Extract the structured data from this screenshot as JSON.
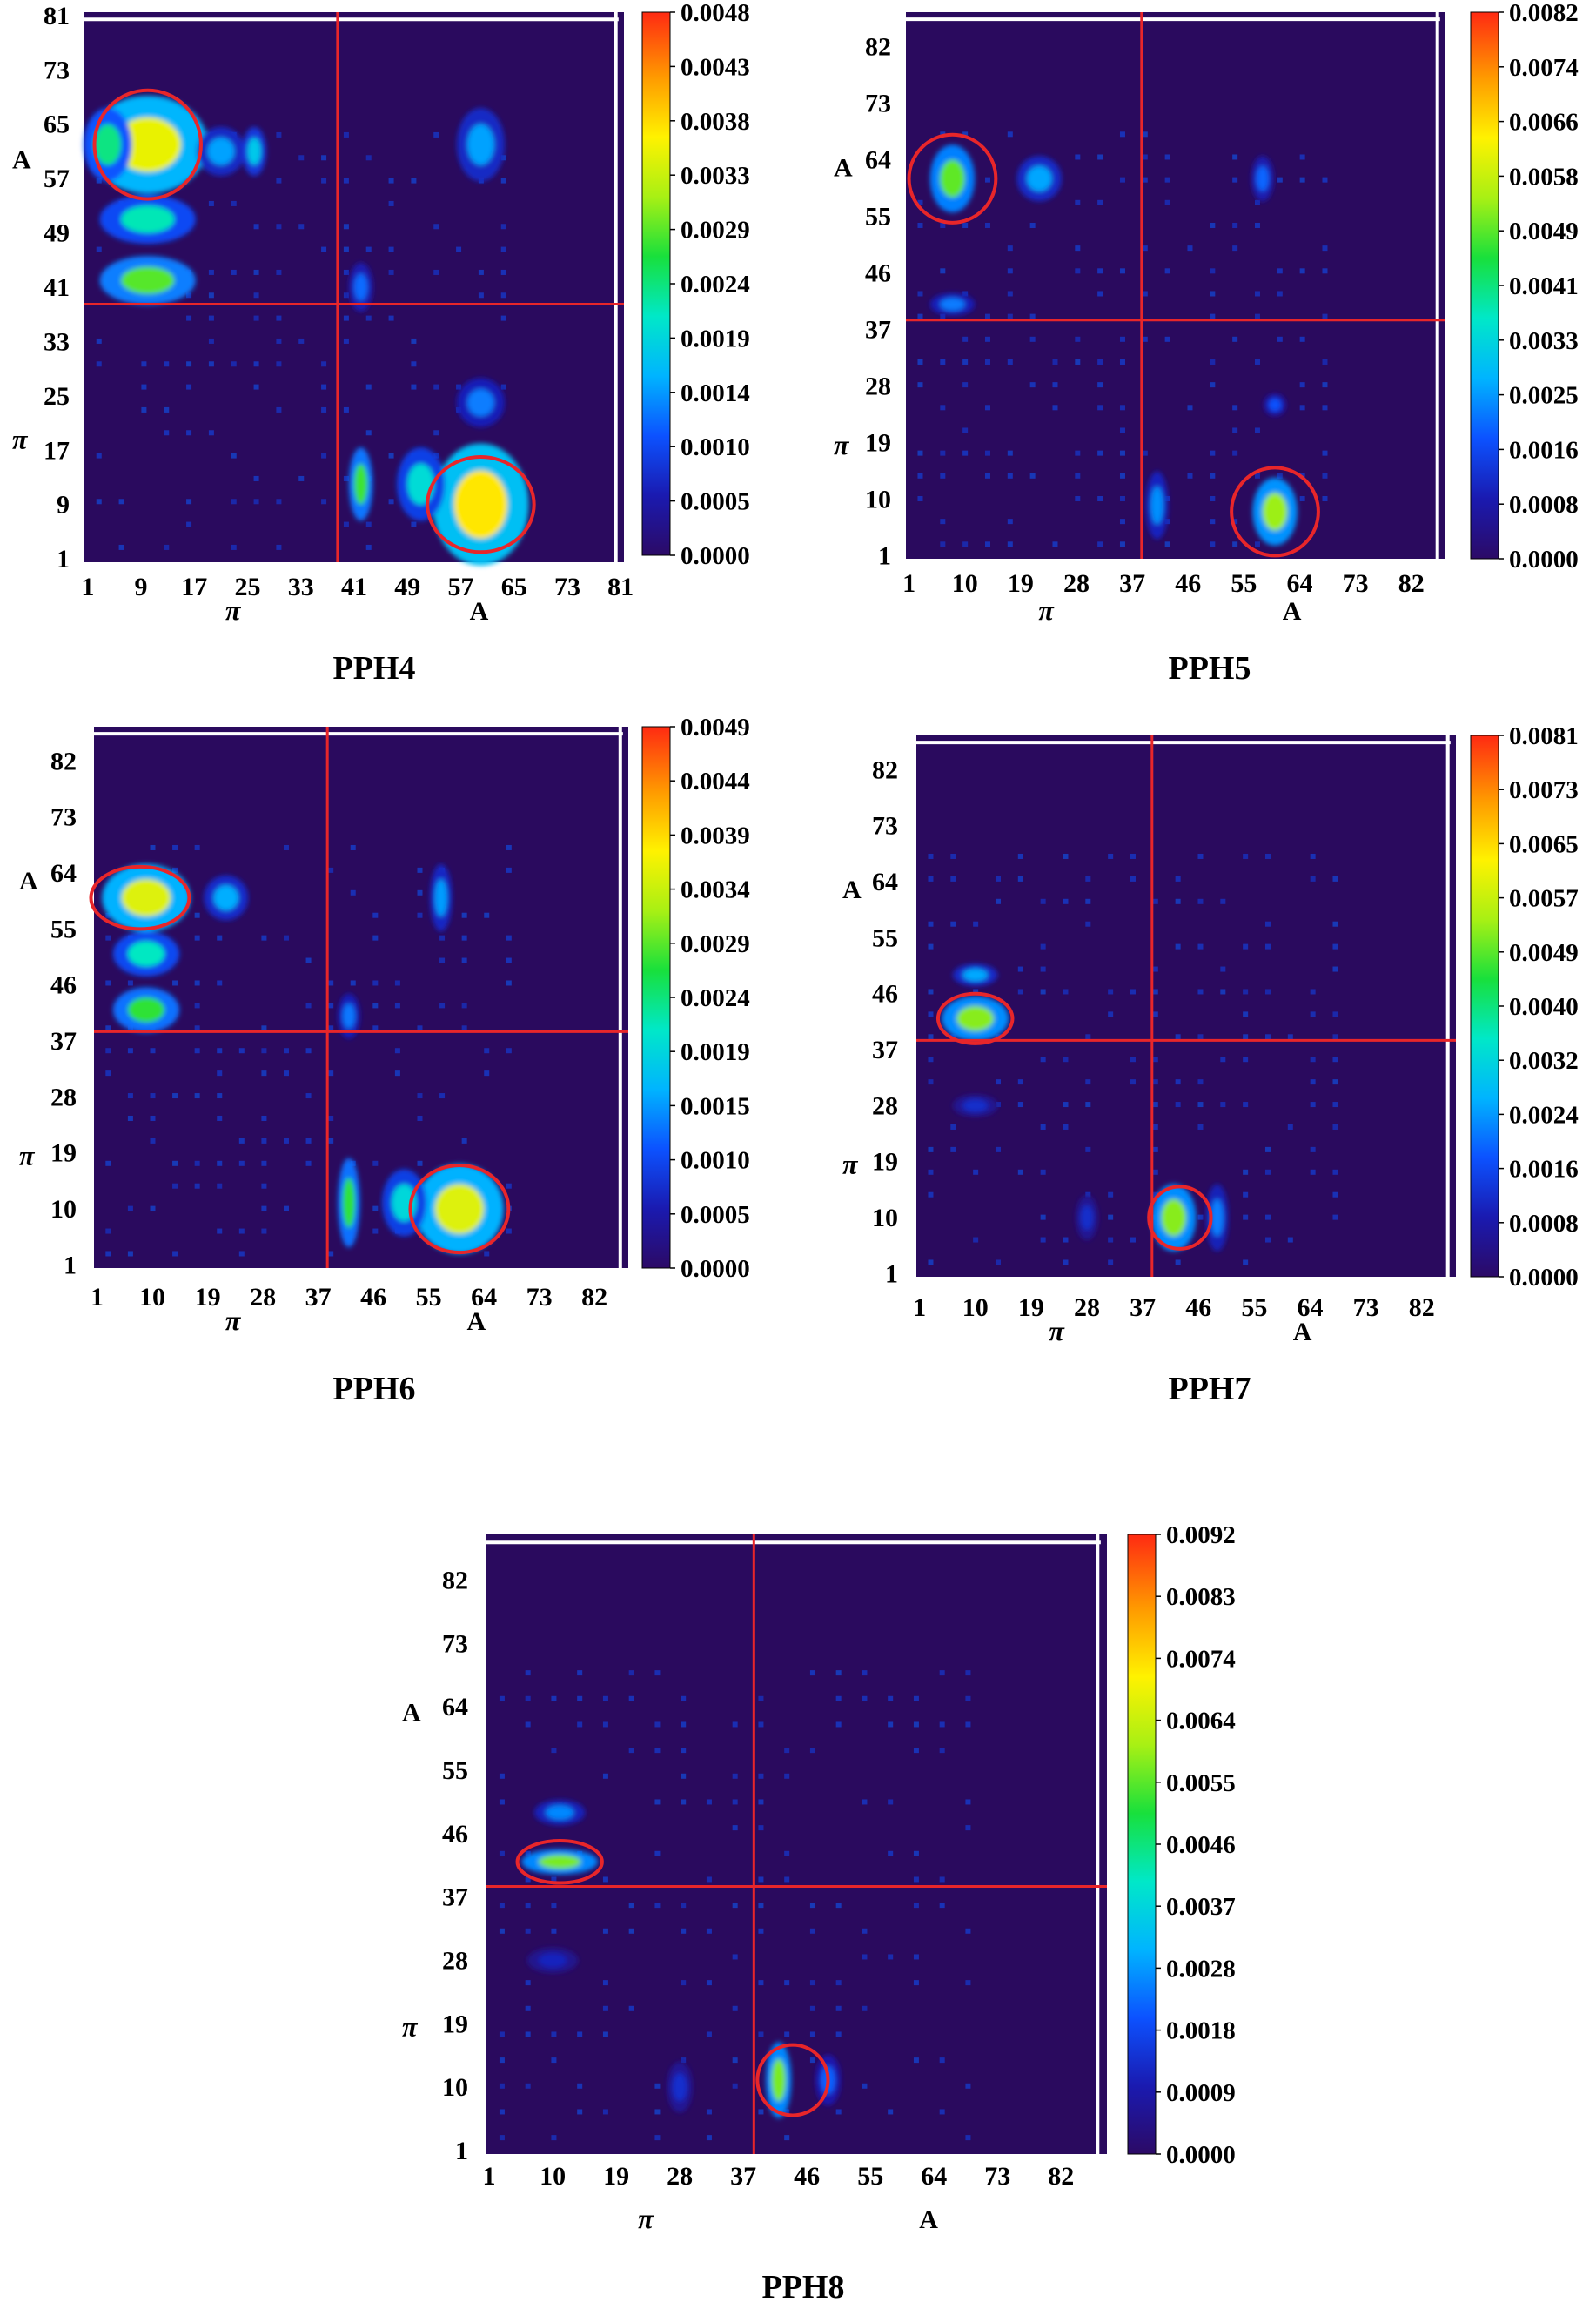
{
  "figure": {
    "panels": [
      "PPH4",
      "PPH5",
      "PPH6",
      "PPH7",
      "PPH8"
    ]
  },
  "colors": {
    "background_matrix": "#2a0a5e",
    "divider": "#e8262a",
    "circle": "#e8262a",
    "border_line": "#ffffff",
    "colormap": [
      "#2c0a66",
      "#1a1ab0",
      "#0c52ff",
      "#00b4ff",
      "#00e8c8",
      "#18e03c",
      "#a8f014",
      "#fff200",
      "#ff9a00",
      "#ff2a12"
    ]
  },
  "chart_data": [
    {
      "type": "heatmap",
      "title": "PPH4",
      "n": 81,
      "divider": 38.5,
      "x_ticks": [
        "1",
        "9",
        "17",
        "25",
        "33",
        "41",
        "49",
        "57",
        "65",
        "73",
        "81"
      ],
      "y_ticks": [
        "1",
        "9",
        "17",
        "25",
        "33",
        "41",
        "49",
        "57",
        "65",
        "73",
        "81"
      ],
      "x_group_labels": [
        "π",
        "A"
      ],
      "y_group_labels": [
        "π",
        "A"
      ],
      "colorbar_ticks": [
        "0.0048",
        "0.0043",
        "0.0038",
        "0.0033",
        "0.0029",
        "0.0024",
        "0.0019",
        "0.0014",
        "0.0010",
        "0.0005",
        "0.0000"
      ],
      "vmin": 0.0,
      "vmax": 0.0048,
      "hotspots": [
        {
          "x": 10,
          "y": 62,
          "value": 0.0036,
          "rx": 5,
          "ry": 4
        },
        {
          "x": 60,
          "y": 9,
          "value": 0.0038,
          "rx": 4,
          "ry": 5
        },
        {
          "x": 10,
          "y": 42,
          "value": 0.0029,
          "rx": 4,
          "ry": 2
        },
        {
          "x": 10,
          "y": 51,
          "value": 0.0022,
          "rx": 4,
          "ry": 2
        },
        {
          "x": 4,
          "y": 62,
          "value": 0.0024,
          "rx": 2,
          "ry": 3
        },
        {
          "x": 21,
          "y": 61,
          "value": 0.0015,
          "rx": 2,
          "ry": 2
        },
        {
          "x": 26,
          "y": 61,
          "value": 0.0018,
          "rx": 1,
          "ry": 2
        },
        {
          "x": 42,
          "y": 12,
          "value": 0.0028,
          "rx": 1,
          "ry": 3
        },
        {
          "x": 51,
          "y": 12,
          "value": 0.002,
          "rx": 2,
          "ry": 3
        },
        {
          "x": 60,
          "y": 24,
          "value": 0.0013,
          "rx": 2,
          "ry": 2
        },
        {
          "x": 60,
          "y": 62,
          "value": 0.0015,
          "rx": 2,
          "ry": 3
        },
        {
          "x": 42,
          "y": 41,
          "value": 0.0012,
          "rx": 1,
          "ry": 2
        }
      ],
      "circles": [
        {
          "x": 10,
          "y": 62,
          "rx": 8,
          "ry": 8
        },
        {
          "x": 60,
          "y": 9,
          "rx": 8,
          "ry": 7
        }
      ]
    },
    {
      "type": "heatmap",
      "title": "PPH5",
      "n": 87,
      "divider": 38.5,
      "x_ticks": [
        "1",
        "10",
        "19",
        "28",
        "37",
        "46",
        "55",
        "64",
        "73",
        "82"
      ],
      "y_ticks": [
        "1",
        "10",
        "19",
        "28",
        "37",
        "46",
        "55",
        "64",
        "73",
        "82"
      ],
      "x_group_labels": [
        "π",
        "A"
      ],
      "y_group_labels": [
        "π",
        "A"
      ],
      "colorbar_ticks": [
        "0.0082",
        "0.0074",
        "0.0066",
        "0.0058",
        "0.0049",
        "0.0041",
        "0.0033",
        "0.0025",
        "0.0016",
        "0.0008",
        "0.0000"
      ],
      "vmin": 0.0,
      "vmax": 0.0082,
      "hotspots": [
        {
          "x": 8,
          "y": 61,
          "value": 0.005,
          "rx": 2,
          "ry": 3
        },
        {
          "x": 60,
          "y": 8,
          "value": 0.0054,
          "rx": 2,
          "ry": 3
        },
        {
          "x": 22,
          "y": 61,
          "value": 0.0026,
          "rx": 2,
          "ry": 2
        },
        {
          "x": 8,
          "y": 41,
          "value": 0.0022,
          "rx": 2,
          "ry": 1
        },
        {
          "x": 41,
          "y": 9,
          "value": 0.0024,
          "rx": 1,
          "ry": 3
        },
        {
          "x": 60,
          "y": 25,
          "value": 0.0018,
          "rx": 1,
          "ry": 1
        },
        {
          "x": 58,
          "y": 61,
          "value": 0.002,
          "rx": 1,
          "ry": 2
        }
      ],
      "circles": [
        {
          "x": 8,
          "y": 61,
          "rx": 7,
          "ry": 7
        },
        {
          "x": 60,
          "y": 8,
          "rx": 7,
          "ry": 7
        }
      ]
    },
    {
      "type": "heatmap",
      "title": "PPH6",
      "n": 87,
      "divider": 38.5,
      "x_ticks": [
        "1",
        "10",
        "19",
        "28",
        "37",
        "46",
        "55",
        "64",
        "73",
        "82"
      ],
      "y_ticks": [
        "1",
        "10",
        "19",
        "28",
        "37",
        "46",
        "55",
        "64",
        "73",
        "82"
      ],
      "x_group_labels": [
        "π",
        "A"
      ],
      "y_group_labels": [
        "π",
        "A"
      ],
      "colorbar_ticks": [
        "0.0049",
        "0.0044",
        "0.0039",
        "0.0034",
        "0.0029",
        "0.0024",
        "0.0019",
        "0.0015",
        "0.0010",
        "0.0005",
        "0.0000"
      ],
      "vmin": 0.0,
      "vmax": 0.0049,
      "hotspots": [
        {
          "x": 9,
          "y": 60,
          "value": 0.0036,
          "rx": 4,
          "ry": 3
        },
        {
          "x": 60,
          "y": 10,
          "value": 0.0036,
          "rx": 4,
          "ry": 4
        },
        {
          "x": 9,
          "y": 42,
          "value": 0.0028,
          "rx": 3,
          "ry": 2
        },
        {
          "x": 9,
          "y": 51,
          "value": 0.0022,
          "rx": 3,
          "ry": 2
        },
        {
          "x": 42,
          "y": 11,
          "value": 0.0028,
          "rx": 1,
          "ry": 4
        },
        {
          "x": 51,
          "y": 11,
          "value": 0.002,
          "rx": 2,
          "ry": 3
        },
        {
          "x": 22,
          "y": 60,
          "value": 0.0016,
          "rx": 2,
          "ry": 2
        },
        {
          "x": 57,
          "y": 60,
          "value": 0.0015,
          "rx": 1,
          "ry": 3
        },
        {
          "x": 42,
          "y": 41,
          "value": 0.0013,
          "rx": 1,
          "ry": 2
        }
      ],
      "circles": [
        {
          "x": 8,
          "y": 60,
          "rx": 8,
          "ry": 5
        },
        {
          "x": 60,
          "y": 10,
          "rx": 8,
          "ry": 7
        }
      ]
    },
    {
      "type": "heatmap",
      "title": "PPH7",
      "n": 87,
      "divider": 38.5,
      "x_ticks": [
        "1",
        "10",
        "19",
        "28",
        "37",
        "46",
        "55",
        "64",
        "73",
        "82"
      ],
      "y_ticks": [
        "1",
        "10",
        "19",
        "28",
        "37",
        "46",
        "55",
        "64",
        "73",
        "82"
      ],
      "x_group_labels": [
        "π",
        "A"
      ],
      "y_group_labels": [
        "π",
        "A"
      ],
      "colorbar_ticks": [
        "0.0081",
        "0.0073",
        "0.0065",
        "0.0057",
        "0.0049",
        "0.0040",
        "0.0032",
        "0.0024",
        "0.0016",
        "0.0008",
        "0.0000"
      ],
      "vmin": 0.0,
      "vmax": 0.0081,
      "hotspots": [
        {
          "x": 10,
          "y": 42,
          "value": 0.0052,
          "rx": 3,
          "ry": 2
        },
        {
          "x": 42,
          "y": 10,
          "value": 0.0052,
          "rx": 2,
          "ry": 3
        },
        {
          "x": 10,
          "y": 49,
          "value": 0.0026,
          "rx": 2,
          "ry": 1
        },
        {
          "x": 49,
          "y": 10,
          "value": 0.0022,
          "rx": 1,
          "ry": 3
        },
        {
          "x": 10,
          "y": 28,
          "value": 0.0012,
          "rx": 2,
          "ry": 1
        },
        {
          "x": 28,
          "y": 10,
          "value": 0.0012,
          "rx": 1,
          "ry": 2
        }
      ],
      "circles": [
        {
          "x": 10,
          "y": 42,
          "rx": 6,
          "ry": 4
        },
        {
          "x": 43,
          "y": 10,
          "rx": 5,
          "ry": 5
        }
      ]
    },
    {
      "type": "heatmap",
      "title": "PPH8",
      "n": 88,
      "divider": 38.5,
      "x_ticks": [
        "1",
        "10",
        "19",
        "28",
        "37",
        "46",
        "55",
        "64",
        "73",
        "82"
      ],
      "y_ticks": [
        "1",
        "10",
        "19",
        "28",
        "37",
        "46",
        "55",
        "64",
        "73",
        "82"
      ],
      "x_group_labels": [
        "π",
        "A"
      ],
      "y_group_labels": [
        "π",
        "A"
      ],
      "colorbar_ticks": [
        "0.0092",
        "0.0083",
        "0.0074",
        "0.0064",
        "0.0055",
        "0.0046",
        "0.0037",
        "0.0028",
        "0.0018",
        "0.0009",
        "0.0000"
      ],
      "vmin": 0.0,
      "vmax": 0.0092,
      "hotspots": [
        {
          "x": 11,
          "y": 42,
          "value": 0.0058,
          "rx": 3,
          "ry": 1
        },
        {
          "x": 42,
          "y": 11,
          "value": 0.0058,
          "rx": 1,
          "ry": 3
        },
        {
          "x": 11,
          "y": 49,
          "value": 0.0026,
          "rx": 2,
          "ry": 1
        },
        {
          "x": 49,
          "y": 11,
          "value": 0.0022,
          "rx": 1,
          "ry": 2
        },
        {
          "x": 28,
          "y": 10,
          "value": 0.0014,
          "rx": 1,
          "ry": 2
        },
        {
          "x": 10,
          "y": 28,
          "value": 0.0012,
          "rx": 2,
          "ry": 1
        }
      ],
      "circles": [
        {
          "x": 11,
          "y": 42,
          "rx": 6,
          "ry": 3
        },
        {
          "x": 44,
          "y": 11,
          "rx": 5,
          "ry": 5
        }
      ]
    }
  ]
}
